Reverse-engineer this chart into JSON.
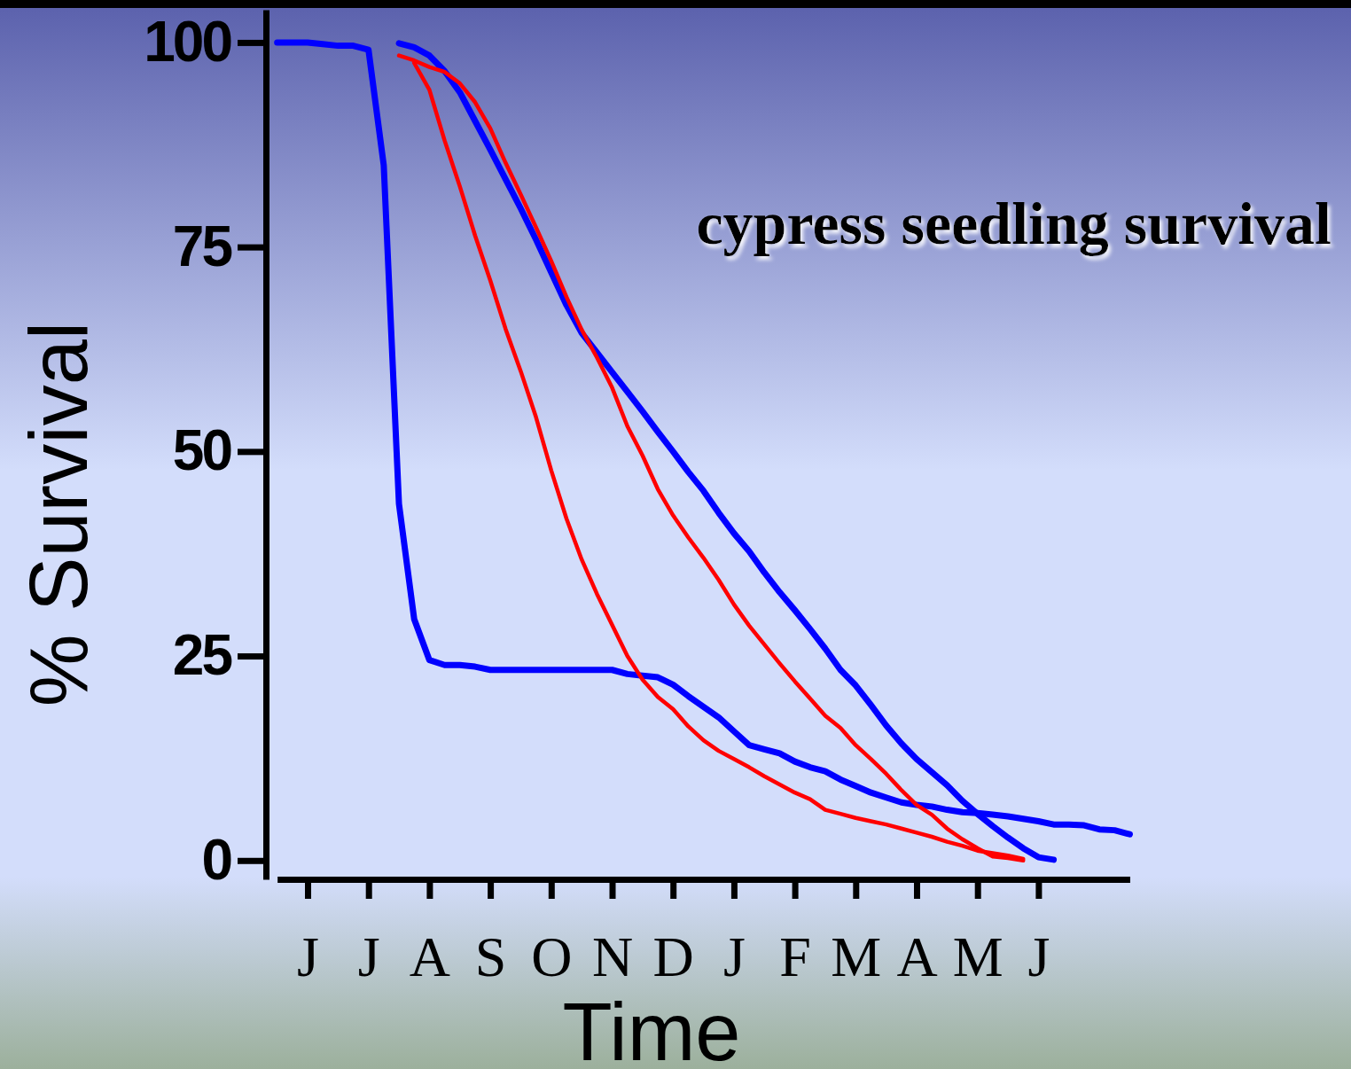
{
  "chart_data": {
    "type": "line",
    "title": "cypress seedling survival",
    "xlabel": "Time",
    "ylabel": "% Survival",
    "categories": [
      null,
      null,
      "J",
      null,
      null,
      null,
      "J",
      null,
      null,
      null,
      "A",
      null,
      null,
      null,
      "S",
      null,
      null,
      null,
      "O",
      null,
      null,
      null,
      "N",
      null,
      null,
      null,
      "D",
      null,
      null,
      null,
      "J",
      null,
      null,
      null,
      "F",
      null,
      null,
      null,
      "M",
      null,
      null,
      null,
      "A",
      null,
      null,
      null,
      "M",
      null,
      null,
      null,
      "J",
      null,
      null,
      null,
      null,
      null,
      null
    ],
    "ylim": [
      -2.3,
      104
    ],
    "yticks": [
      0,
      25,
      50,
      75,
      100
    ],
    "marker": "none",
    "line_style": "solid",
    "series": [
      {
        "color": "#0000ff",
        "values": [
          100,
          100,
          100,
          99.8,
          99.6,
          99.6,
          99.1,
          85.0,
          43.6,
          29.5,
          24.5,
          23.9,
          23.9,
          23.7,
          23.3,
          23.3,
          23.3,
          23.3,
          23.3,
          23.3,
          23.3,
          23.3,
          23.3,
          22.8,
          22.6,
          22.4,
          21.5,
          20.1,
          18.8,
          17.5,
          15.8,
          14.1,
          13.6,
          13.1,
          12.1,
          11.4,
          10.9,
          9.9,
          9.1,
          8.3,
          7.7,
          7.1,
          6.8,
          6.6,
          6.2,
          5.9,
          5.8,
          5.6,
          5.4,
          5.1,
          4.8,
          4.4,
          4.4,
          4.3,
          3.8,
          3.7,
          3.2
        ]
      },
      {
        "color": "#0000ff",
        "values": [
          null,
          null,
          null,
          null,
          null,
          null,
          null,
          null,
          99.9,
          99.4,
          98.4,
          96.5,
          93.9,
          90.4,
          86.9,
          83.3,
          79.7,
          75.9,
          71.9,
          67.9,
          64.5,
          62.1,
          59.7,
          57.3,
          54.9,
          52.4,
          50.0,
          47.5,
          45.2,
          42.5,
          40.0,
          37.8,
          35.2,
          32.8,
          30.6,
          28.3,
          25.9,
          23.3,
          21.4,
          19.0,
          16.5,
          14.3,
          12.4,
          10.8,
          9.2,
          7.3,
          5.7,
          4.2,
          2.8,
          1.5,
          0.4,
          0.1,
          null,
          null,
          null,
          null,
          null
        ]
      },
      {
        "color": "#ff0000",
        "values": [
          null,
          null,
          null,
          null,
          null,
          null,
          null,
          null,
          98.4,
          97.8,
          97.0,
          96.4,
          95.0,
          92.7,
          89.5,
          85.3,
          81.4,
          77.4,
          73.3,
          68.9,
          64.9,
          61.5,
          57.8,
          53.1,
          49.5,
          45.4,
          42.2,
          39.5,
          37.0,
          34.3,
          31.3,
          28.7,
          26.4,
          24.1,
          21.9,
          19.8,
          17.7,
          16.2,
          14.1,
          12.4,
          10.6,
          8.6,
          6.8,
          5.6,
          3.9,
          2.6,
          1.5,
          0.5,
          0.3,
          0,
          null,
          null,
          null,
          null,
          null,
          null,
          null
        ]
      },
      {
        "color": "#ff0000",
        "values": [
          null,
          null,
          null,
          null,
          null,
          null,
          null,
          null,
          null,
          97.5,
          94.2,
          88.0,
          82.4,
          76.4,
          70.9,
          65.0,
          59.8,
          54.2,
          47.7,
          41.8,
          36.8,
          32.6,
          28.8,
          25.0,
          22.1,
          20.0,
          18.5,
          16.4,
          14.7,
          13.4,
          12.4,
          11.4,
          10.3,
          9.3,
          8.3,
          7.5,
          6.2,
          5.7,
          5.2,
          4.8,
          4.4,
          3.9,
          3.4,
          2.9,
          2.3,
          1.8,
          1.2,
          0.9,
          0.6,
          0.2,
          null,
          null,
          null,
          null,
          null,
          null,
          null
        ]
      }
    ]
  }
}
